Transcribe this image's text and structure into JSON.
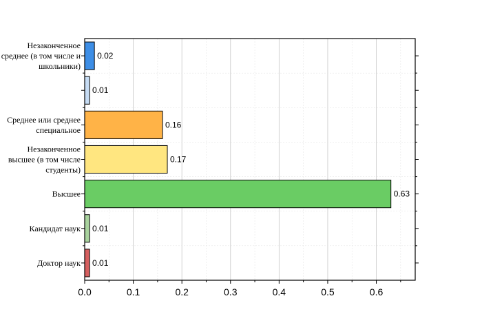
{
  "chart_data": {
    "type": "bar",
    "orientation": "horizontal",
    "categories": [
      [
        "Незаконченное",
        "среднее (в том числе и",
        "школьники)"
      ],
      [
        ""
      ],
      [
        "Среднее или среднее",
        "специальное"
      ],
      [
        "Незаконченное",
        "высшее (в том числе",
        "студенты)"
      ],
      [
        "Высшее"
      ],
      [
        "Кандидат наук"
      ],
      [
        "Доктор наук"
      ]
    ],
    "values": [
      0.02,
      0.01,
      0.16,
      0.17,
      0.63,
      0.01,
      0.01
    ],
    "value_labels": [
      "0.02",
      "0.01",
      "0.16",
      "0.17",
      "0.63",
      "0.01",
      "0.01"
    ],
    "colors": [
      "#3d8ee6",
      "#c6dcf4",
      "#ffb347",
      "#ffe680",
      "#6acc64",
      "#a9d39e",
      "#d65f5f"
    ],
    "xticks": [
      "0.0",
      "0.1",
      "0.2",
      "0.3",
      "0.4",
      "0.5",
      "0.6"
    ],
    "xlim": [
      0,
      0.68
    ],
    "grid": true
  }
}
